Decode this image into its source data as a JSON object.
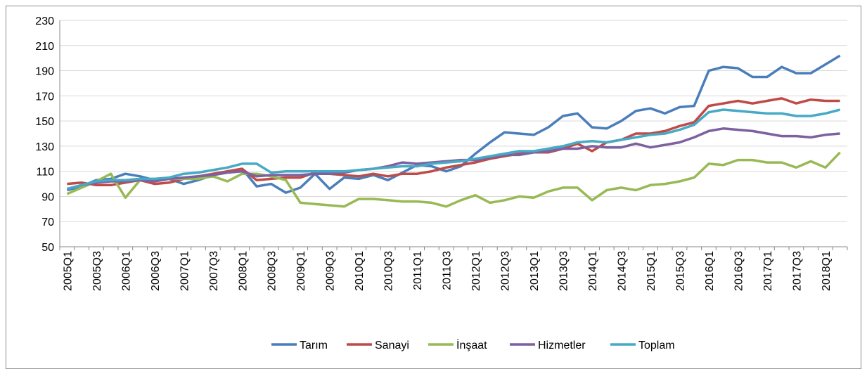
{
  "chart_data": {
    "type": "line",
    "categories": [
      "2005Q1",
      null,
      "2005Q3",
      null,
      "2006Q1",
      null,
      "2006Q3",
      null,
      "2007Q1",
      null,
      "2007Q3",
      null,
      "2008Q1",
      null,
      "2008Q3",
      null,
      "2009Q1",
      null,
      "2009Q3",
      null,
      "2010Q1",
      null,
      "2010Q3",
      null,
      "2011Q1",
      null,
      "2011Q3",
      null,
      "2012Q1",
      null,
      "2012Q3",
      null,
      "2013Q1",
      null,
      "2013Q3",
      null,
      "2014Q1",
      null,
      "2014Q3",
      null,
      "2015Q1",
      null,
      "2015Q3",
      null,
      "2016Q1",
      null,
      "2016Q3",
      null,
      "2017Q1",
      null,
      "2017Q3",
      null,
      "2018Q1",
      null
    ],
    "series": [
      {
        "name": "Tarım",
        "color": "#4a7ebb",
        "values": [
          95,
          98,
          103,
          104,
          108,
          106,
          103,
          104,
          100,
          103,
          107,
          110,
          112,
          98,
          100,
          93,
          97,
          108,
          96,
          105,
          104,
          107,
          103,
          109,
          115,
          114,
          110,
          114,
          124,
          133,
          141,
          140,
          139,
          145,
          154,
          156,
          145,
          144,
          150,
          158,
          160,
          156,
          161,
          162,
          190,
          193,
          192,
          185,
          185,
          193,
          188,
          188,
          195,
          202
        ]
      },
      {
        "name": "Sanayi",
        "color": "#be4b48",
        "values": [
          100,
          101,
          99,
          99,
          101,
          103,
          100,
          101,
          104,
          106,
          108,
          110,
          112,
          103,
          104,
          105,
          105,
          109,
          108,
          107,
          106,
          108,
          106,
          108,
          108,
          110,
          113,
          115,
          117,
          120,
          122,
          124,
          125,
          125,
          128,
          132,
          126,
          133,
          135,
          140,
          140,
          142,
          146,
          149,
          162,
          164,
          166,
          164,
          166,
          168,
          164,
          167,
          166,
          166
        ]
      },
      {
        "name": "İnşaat",
        "color": "#98b954",
        "values": [
          92,
          97,
          102,
          108,
          89,
          103,
          103,
          104,
          104,
          104,
          106,
          102,
          108,
          108,
          106,
          103,
          85,
          84,
          83,
          82,
          88,
          88,
          87,
          86,
          86,
          85,
          82,
          87,
          91,
          85,
          87,
          90,
          89,
          94,
          97,
          97,
          87,
          95,
          97,
          95,
          99,
          100,
          102,
          105,
          116,
          115,
          119,
          119,
          117,
          117,
          113,
          118,
          113,
          125
        ]
      },
      {
        "name": "Hizmetler",
        "color": "#7d60a0",
        "values": [
          96,
          99,
          101,
          102,
          102,
          103,
          102,
          104,
          105,
          106,
          107,
          109,
          110,
          106,
          107,
          107,
          107,
          108,
          108,
          109,
          111,
          112,
          114,
          117,
          116,
          117,
          118,
          119,
          119,
          121,
          123,
          123,
          125,
          126,
          128,
          128,
          130,
          129,
          129,
          132,
          129,
          131,
          133,
          137,
          142,
          144,
          143,
          142,
          140,
          138,
          138,
          137,
          139,
          140
        ]
      },
      {
        "name": "Toplam",
        "color": "#46aac5",
        "values": [
          96,
          99,
          102,
          103,
          103,
          104,
          104,
          105,
          108,
          109,
          111,
          113,
          116,
          116,
          109,
          110,
          110,
          110,
          110,
          110,
          111,
          112,
          113,
          114,
          114,
          116,
          117,
          118,
          120,
          122,
          124,
          126,
          126,
          128,
          130,
          133,
          134,
          133,
          135,
          137,
          139,
          140,
          143,
          147,
          157,
          159,
          158,
          157,
          156,
          156,
          154,
          154,
          156,
          159
        ]
      }
    ],
    "ylim": [
      50,
      230
    ],
    "yticks": [
      50,
      70,
      90,
      110,
      130,
      150,
      170,
      190,
      210,
      230
    ],
    "grid": true,
    "legend": "bottom"
  }
}
